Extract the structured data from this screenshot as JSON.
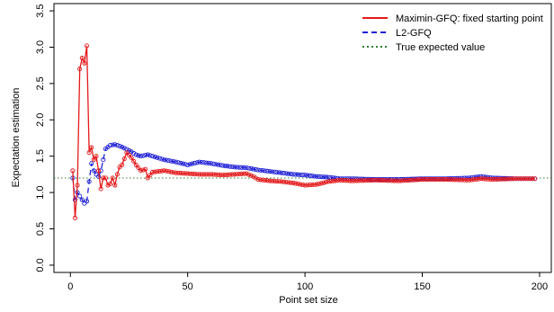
{
  "chart_data": {
    "type": "line",
    "title": "",
    "xlabel": "Point set size",
    "ylabel": "Expectation estimation",
    "xlim": [
      -7,
      205
    ],
    "ylim": [
      -0.1,
      3.6
    ],
    "x_ticks": [
      0,
      50,
      100,
      150,
      200
    ],
    "y_ticks": [
      0.0,
      0.5,
      1.0,
      1.5,
      2.0,
      2.5,
      3.0,
      3.5
    ],
    "x_tick_labels": [
      "0",
      "50",
      "100",
      "150",
      "200"
    ],
    "y_tick_labels": [
      "0.0",
      "0.5",
      "1.0",
      "1.5",
      "2.0",
      "2.5",
      "3.0",
      "3.5"
    ],
    "grid": false,
    "legend_position": "top-right",
    "colors": {
      "maximin": "#e41a1c",
      "l2": "#1f1fd6",
      "true_value": "#2e7d32",
      "axis": "#000000"
    },
    "reference_line": {
      "name": "True expected value",
      "value": 1.2,
      "style": "dotted"
    },
    "series": [
      {
        "name": "Maximin-GFQ: fixed starting point",
        "style": "solid",
        "marker": "open-circle",
        "anchors": [
          [
            1,
            1.3
          ],
          [
            2,
            0.65
          ],
          [
            3,
            1.1
          ],
          [
            4,
            2.7
          ],
          [
            5,
            2.85
          ],
          [
            6,
            2.78
          ],
          [
            7,
            3.02
          ],
          [
            8,
            1.55
          ],
          [
            9,
            1.62
          ],
          [
            10,
            1.45
          ],
          [
            11,
            1.5
          ],
          [
            12,
            1.3
          ],
          [
            13,
            1.05
          ],
          [
            14,
            1.2
          ],
          [
            15,
            1.2
          ],
          [
            16,
            1.1
          ],
          [
            17,
            1.12
          ],
          [
            18,
            1.2
          ],
          [
            19,
            1.1
          ],
          [
            20,
            1.25
          ],
          [
            21,
            1.35
          ],
          [
            22,
            1.38
          ],
          [
            24,
            1.55
          ],
          [
            26,
            1.48
          ],
          [
            28,
            1.38
          ],
          [
            30,
            1.3
          ],
          [
            32,
            1.32
          ],
          [
            33,
            1.2
          ],
          [
            35,
            1.28
          ],
          [
            40,
            1.3
          ],
          [
            45,
            1.27
          ],
          [
            50,
            1.26
          ],
          [
            55,
            1.25
          ],
          [
            60,
            1.25
          ],
          [
            65,
            1.24
          ],
          [
            70,
            1.25
          ],
          [
            75,
            1.26
          ],
          [
            78,
            1.22
          ],
          [
            80,
            1.18
          ],
          [
            85,
            1.16
          ],
          [
            90,
            1.15
          ],
          [
            95,
            1.13
          ],
          [
            100,
            1.1
          ],
          [
            105,
            1.11
          ],
          [
            110,
            1.15
          ],
          [
            115,
            1.17
          ],
          [
            120,
            1.16
          ],
          [
            130,
            1.17
          ],
          [
            140,
            1.16
          ],
          [
            150,
            1.18
          ],
          [
            160,
            1.18
          ],
          [
            170,
            1.17
          ],
          [
            175,
            1.19
          ],
          [
            180,
            1.18
          ],
          [
            190,
            1.19
          ],
          [
            198,
            1.19
          ]
        ]
      },
      {
        "name": "L2-GFQ",
        "style": "dashed",
        "marker": "open-circle",
        "anchors": [
          [
            1,
            1.2
          ],
          [
            2,
            0.9
          ],
          [
            3,
            1.0
          ],
          [
            4,
            0.95
          ],
          [
            5,
            0.9
          ],
          [
            6,
            0.85
          ],
          [
            7,
            0.88
          ],
          [
            8,
            1.15
          ],
          [
            9,
            1.4
          ],
          [
            10,
            1.3
          ],
          [
            11,
            1.25
          ],
          [
            12,
            1.22
          ],
          [
            13,
            1.3
          ],
          [
            14,
            1.45
          ],
          [
            15,
            1.6
          ],
          [
            17,
            1.65
          ],
          [
            19,
            1.66
          ],
          [
            21,
            1.64
          ],
          [
            23,
            1.61
          ],
          [
            25,
            1.58
          ],
          [
            28,
            1.52
          ],
          [
            30,
            1.5
          ],
          [
            33,
            1.52
          ],
          [
            35,
            1.5
          ],
          [
            40,
            1.45
          ],
          [
            45,
            1.42
          ],
          [
            50,
            1.38
          ],
          [
            55,
            1.42
          ],
          [
            60,
            1.4
          ],
          [
            65,
            1.37
          ],
          [
            70,
            1.35
          ],
          [
            75,
            1.34
          ],
          [
            80,
            1.31
          ],
          [
            85,
            1.29
          ],
          [
            90,
            1.27
          ],
          [
            95,
            1.25
          ],
          [
            100,
            1.24
          ],
          [
            105,
            1.22
          ],
          [
            110,
            1.21
          ],
          [
            115,
            1.19
          ],
          [
            120,
            1.19
          ],
          [
            130,
            1.18
          ],
          [
            140,
            1.18
          ],
          [
            150,
            1.19
          ],
          [
            160,
            1.19
          ],
          [
            170,
            1.2
          ],
          [
            175,
            1.22
          ],
          [
            180,
            1.2
          ],
          [
            190,
            1.19
          ],
          [
            198,
            1.19
          ]
        ]
      }
    ]
  }
}
